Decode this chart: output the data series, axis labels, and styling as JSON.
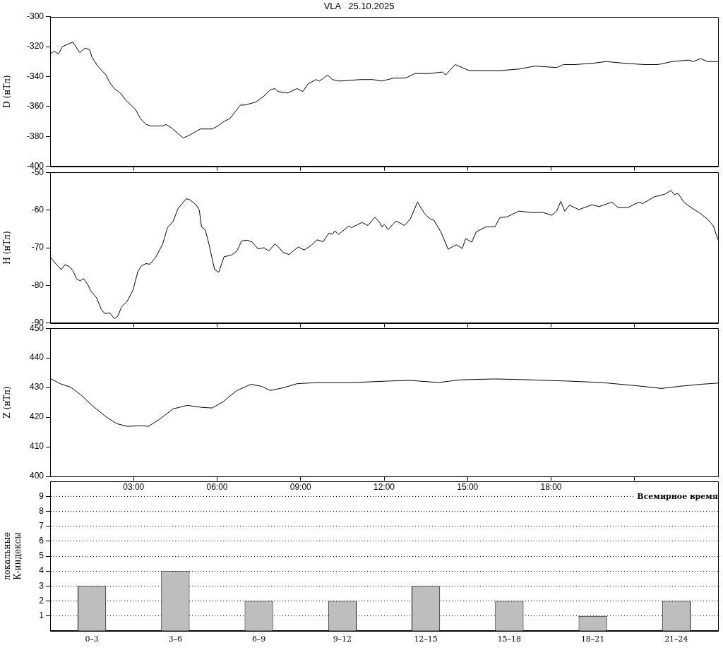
{
  "chart_data": [
    {
      "type": "line",
      "title": "VLA   25.10.2025",
      "ylabel": "D (нТл)",
      "color": "#000000",
      "marker": "none",
      "grid": false,
      "tick_labels": "y",
      "xlim": [
        0,
        24
      ],
      "ylim": [
        -400,
        -300
      ],
      "yticks": [
        -400,
        -380,
        -360,
        -340,
        -320,
        -300
      ],
      "xticks": [
        {
          "value": 3,
          "label": null
        },
        {
          "value": 6,
          "label": null
        },
        {
          "value": 9,
          "label": null
        },
        {
          "value": 12,
          "label": null
        },
        {
          "value": 15,
          "label": null
        },
        {
          "value": 18,
          "label": null
        },
        {
          "value": 21,
          "label": null
        }
      ],
      "x": [
        0,
        0.14,
        0.3,
        0.44,
        0.82,
        1.06,
        1.25,
        1.42,
        1.5,
        1.71,
        2.01,
        2.14,
        2.31,
        2.52,
        2.73,
        3.07,
        3.24,
        3.45,
        3.62,
        3.79,
        4.04,
        4.17,
        4.34,
        4.59,
        4.79,
        5.02,
        5.4,
        5.65,
        5.82,
        6.03,
        6.25,
        6.46,
        6.84,
        7.01,
        7.39,
        7.69,
        7.9,
        8.07,
        8.19,
        8.54,
        8.87,
        9.08,
        9.26,
        9.55,
        9.68,
        9.97,
        10.14,
        10.4,
        11.16,
        11.59,
        11.92,
        12.35,
        12.77,
        13.11,
        13.62,
        14.09,
        14.21,
        14.55,
        14.81,
        15.06,
        15.4,
        16.16,
        16.84,
        17.43,
        18.2,
        18.45,
        18.87,
        19.55,
        19.98,
        20.57,
        21.33,
        21.84,
        22.35,
        22.94,
        23.11,
        23.37,
        23.62,
        24
      ],
      "values": [
        -325,
        -323,
        -325,
        -320,
        -317,
        -324,
        -321,
        -322,
        -327,
        -333,
        -339,
        -344,
        -348,
        -351,
        -356,
        -362,
        -368,
        -372,
        -373,
        -373,
        -373,
        -372,
        -374,
        -378,
        -381,
        -379,
        -375,
        -375,
        -375,
        -373,
        -370,
        -368,
        -359,
        -359,
        -357,
        -353,
        -349,
        -348,
        -350,
        -351,
        -348,
        -350,
        -345,
        -342,
        -343,
        -339,
        -342,
        -343,
        -342,
        -342,
        -343,
        -341,
        -341,
        -338,
        -338,
        -337,
        -339,
        -332,
        -334,
        -336,
        -336,
        -336,
        -335,
        -333,
        -334,
        -332,
        -332,
        -331,
        -330,
        -331,
        -332,
        -332,
        -330,
        -329,
        -330,
        -328,
        -330,
        -330
      ]
    },
    {
      "type": "line",
      "ylabel": "H (нТл)",
      "color": "#000000",
      "marker": "none",
      "grid": false,
      "tick_labels": "y",
      "xlim": [
        0,
        24
      ],
      "ylim": [
        -90,
        -50
      ],
      "yticks": [
        -90,
        -80,
        -70,
        -60,
        -50
      ],
      "xticks": [
        {
          "value": 3,
          "label": null
        },
        {
          "value": 6,
          "label": null
        },
        {
          "value": 9,
          "label": null
        },
        {
          "value": 12,
          "label": null
        },
        {
          "value": 15,
          "label": null
        },
        {
          "value": 18,
          "label": null
        },
        {
          "value": 21,
          "label": null
        }
      ],
      "x": [
        0,
        0.23,
        0.4,
        0.53,
        0.69,
        0.82,
        0.95,
        1.08,
        1.2,
        1.37,
        1.46,
        1.67,
        1.84,
        1.97,
        2.14,
        2.31,
        2.43,
        2.56,
        2.77,
        2.98,
        3.15,
        3.28,
        3.45,
        3.58,
        3.79,
        4.04,
        4.21,
        4.42,
        4.59,
        4.72,
        4.89,
        5.02,
        5.23,
        5.36,
        5.44,
        5.57,
        5.7,
        5.78,
        5.91,
        6.06,
        6.25,
        6.5,
        6.71,
        6.88,
        7.08,
        7.26,
        7.47,
        7.69,
        7.86,
        8.07,
        8.19,
        8.36,
        8.58,
        8.92,
        9.13,
        9.38,
        9.59,
        9.81,
        10.02,
        10.15,
        10.23,
        10.36,
        10.74,
        10.82,
        11.2,
        11.42,
        11.67,
        11.84,
        11.93,
        12.01,
        12.14,
        12.43,
        12.73,
        12.94,
        13.2,
        13.45,
        13.66,
        13.79,
        14.04,
        14.3,
        14.59,
        14.81,
        14.93,
        15.15,
        15.31,
        15.65,
        15.99,
        16.16,
        16.42,
        16.84,
        17.35,
        17.69,
        18.03,
        18.2,
        18.35,
        18.49,
        18.66,
        19,
        19.47,
        19.72,
        20.19,
        20.4,
        20.74,
        21.16,
        21.29,
        21.71,
        22.09,
        22.31,
        22.43,
        22.56,
        22.77,
        23.02,
        23.32,
        23.62,
        23.83,
        24
      ],
      "values": [
        -72.4,
        -74.5,
        -75.8,
        -74.5,
        -75.0,
        -76.1,
        -78.2,
        -78.8,
        -78.2,
        -80.0,
        -81.5,
        -83.3,
        -86.4,
        -87.5,
        -87.3,
        -88.8,
        -88.2,
        -85.8,
        -84.2,
        -81.2,
        -76.4,
        -74.8,
        -74.2,
        -74.4,
        -72.6,
        -69.1,
        -64.8,
        -63.0,
        -59.7,
        -58.5,
        -57.0,
        -57.3,
        -58.5,
        -60.0,
        -64.5,
        -65.2,
        -68.8,
        -71.5,
        -75.8,
        -76.5,
        -72.4,
        -72.0,
        -70.9,
        -68.2,
        -68.0,
        -68.5,
        -70.3,
        -70.0,
        -70.9,
        -69.0,
        -69.7,
        -71.2,
        -71.8,
        -69.8,
        -70.6,
        -69.4,
        -67.9,
        -68.4,
        -66.1,
        -66.4,
        -65.5,
        -66.5,
        -64.2,
        -64.7,
        -63.3,
        -64.1,
        -61.9,
        -63.3,
        -64.5,
        -63.8,
        -65.2,
        -62.9,
        -64.1,
        -62.4,
        -57.9,
        -60.9,
        -62.4,
        -62.7,
        -65.8,
        -70.4,
        -69.2,
        -70.2,
        -67.6,
        -68.5,
        -65.8,
        -64.5,
        -64.4,
        -62.0,
        -61.8,
        -60.3,
        -60.7,
        -60.6,
        -61.4,
        -60.3,
        -57.7,
        -60.3,
        -58.7,
        -59.9,
        -58.6,
        -59.1,
        -57.9,
        -59.3,
        -59.4,
        -57.9,
        -58.3,
        -56.5,
        -55.8,
        -54.8,
        -55.9,
        -55.6,
        -57.9,
        -59.3,
        -60.7,
        -62.4,
        -64.2,
        -67.9
      ]
    },
    {
      "type": "line",
      "ylabel": "Z (нТл)",
      "xlabel": "Всемирное время",
      "color": "#000000",
      "marker": "none",
      "grid": false,
      "xlim": [
        0,
        24
      ],
      "ylim": [
        400,
        450
      ],
      "yticks": [
        400,
        410,
        420,
        430,
        440,
        450
      ],
      "xticks": [
        {
          "value": 3,
          "label": "03:00"
        },
        {
          "value": 6,
          "label": "06:00"
        },
        {
          "value": 9,
          "label": "09:00"
        },
        {
          "value": 12,
          "label": "12:00"
        },
        {
          "value": 15,
          "label": "15:00"
        },
        {
          "value": 18,
          "label": "18:00"
        },
        {
          "value": 21,
          "label": null
        }
      ],
      "x": [
        0,
        0.36,
        0.74,
        1.12,
        1.5,
        2.01,
        2.39,
        2.77,
        3.28,
        3.53,
        3.92,
        4.42,
        4.93,
        5.44,
        5.82,
        6.2,
        6.71,
        7.22,
        7.6,
        7.91,
        8.37,
        8.87,
        9.64,
        10.91,
        12.18,
        12.94,
        13.96,
        14.72,
        15.99,
        17.26,
        18.54,
        19.81,
        21.08,
        21.97,
        22.6,
        23.37,
        24
      ],
      "values": [
        433.1,
        431.3,
        430.1,
        427.4,
        424.0,
        420.1,
        417.8,
        416.9,
        417.1,
        416.9,
        419.2,
        422.8,
        424.0,
        423.3,
        423.1,
        425.1,
        429.0,
        431.1,
        430.4,
        429.0,
        429.9,
        431.3,
        431.7,
        431.7,
        432.2,
        432.4,
        431.7,
        432.6,
        432.9,
        432.6,
        432.2,
        431.7,
        430.6,
        429.7,
        430.4,
        431.1,
        431.5
      ]
    },
    {
      "type": "bar",
      "ylabel": "локальные К-индексы",
      "color": "#bebebe",
      "grid": "y",
      "ylim": [
        0,
        10
      ],
      "yticks": [
        1,
        2,
        3,
        4,
        5,
        6,
        7,
        8,
        9
      ],
      "categories": [
        "0–3",
        "3–6",
        "6–9",
        "9–12",
        "12–15",
        "15–18",
        "18–21",
        "21–24"
      ],
      "values": [
        3,
        4,
        2,
        2,
        3,
        2,
        1,
        2
      ]
    }
  ]
}
